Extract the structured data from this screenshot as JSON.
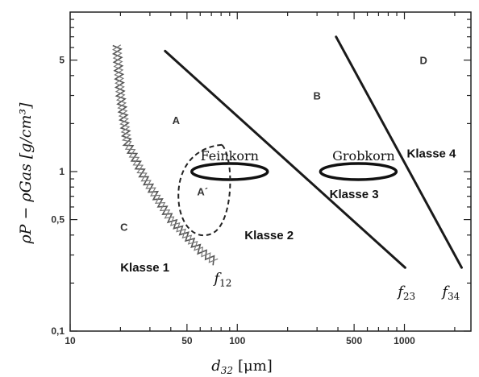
{
  "chart_data": {
    "type": "diagram",
    "x_axis": {
      "label_main": "d",
      "label_sub": "32",
      "label_unit": "[μm]",
      "scale": "log",
      "range": [
        10,
        2500
      ],
      "ticks": [
        {
          "value": 10,
          "label": "10"
        },
        {
          "value": 50,
          "label": "50"
        },
        {
          "value": 100,
          "label": "100"
        },
        {
          "value": 500,
          "label": "500"
        },
        {
          "value": 1000,
          "label": "1000"
        }
      ]
    },
    "y_axis": {
      "label_text": "ρP − ρGas [g/cm³]",
      "scale": "log",
      "range": [
        0.1,
        10
      ],
      "ticks": [
        {
          "value": 0.1,
          "label": "0,1"
        },
        {
          "value": 0.5,
          "label": "0,5"
        },
        {
          "value": 1,
          "label": "1"
        },
        {
          "value": 5,
          "label": "5"
        }
      ]
    },
    "boundaries": [
      {
        "label": "f12",
        "style": "zigzag",
        "points": [
          [
            19,
            6.2
          ],
          [
            20,
            3.0
          ],
          [
            22,
            1.5
          ],
          [
            28,
            0.9
          ],
          [
            40,
            0.5
          ],
          [
            60,
            0.32
          ],
          [
            78,
            0.26
          ]
        ]
      },
      {
        "label": "f23",
        "style": "line",
        "points": [
          [
            37,
            5.7
          ],
          [
            1010,
            0.25
          ]
        ]
      },
      {
        "label": "f34",
        "style": "line",
        "points": [
          [
            390,
            7.0
          ],
          [
            2200,
            0.25
          ]
        ]
      }
    ],
    "boundary_labels": [
      {
        "text": "f",
        "sub": "12",
        "at": [
          82,
          0.2
        ]
      },
      {
        "text": "f",
        "sub": "23",
        "at": [
          1030,
          0.165
        ]
      },
      {
        "text": "f",
        "sub": "34",
        "at": [
          1900,
          0.165
        ]
      }
    ],
    "ellipses": [
      {
        "name": "Feinkorn",
        "center": [
          90,
          1.0
        ],
        "style": "solid"
      },
      {
        "name": "Grobkorn",
        "center": [
          530,
          1.0
        ],
        "style": "solid"
      },
      {
        "name": "A′",
        "center": [
          62,
          0.75
        ],
        "style": "dashed"
      }
    ],
    "region_letters": [
      {
        "text": "A",
        "at": [
          43,
          2.1
        ]
      },
      {
        "text": "B",
        "at": [
          300,
          3.0
        ]
      },
      {
        "text": "C",
        "at": [
          21,
          0.45
        ]
      },
      {
        "text": "D",
        "at": [
          1300,
          5.0
        ]
      },
      {
        "text": "A´",
        "at": [
          62,
          0.75
        ]
      }
    ],
    "classes": [
      {
        "text": "Klasse 1",
        "at": [
          28,
          0.25
        ]
      },
      {
        "text": "Klasse 2",
        "at": [
          155,
          0.4
        ]
      },
      {
        "text": "Klasse 3",
        "at": [
          500,
          0.72
        ]
      },
      {
        "text": "Klasse 4",
        "at": [
          1450,
          1.3
        ]
      }
    ],
    "ellipse_labels": [
      {
        "text": "Feinkorn",
        "at": [
          90,
          1.25
        ]
      },
      {
        "text": "Grobkorn",
        "at": [
          570,
          1.25
        ]
      }
    ],
    "grid": false
  }
}
